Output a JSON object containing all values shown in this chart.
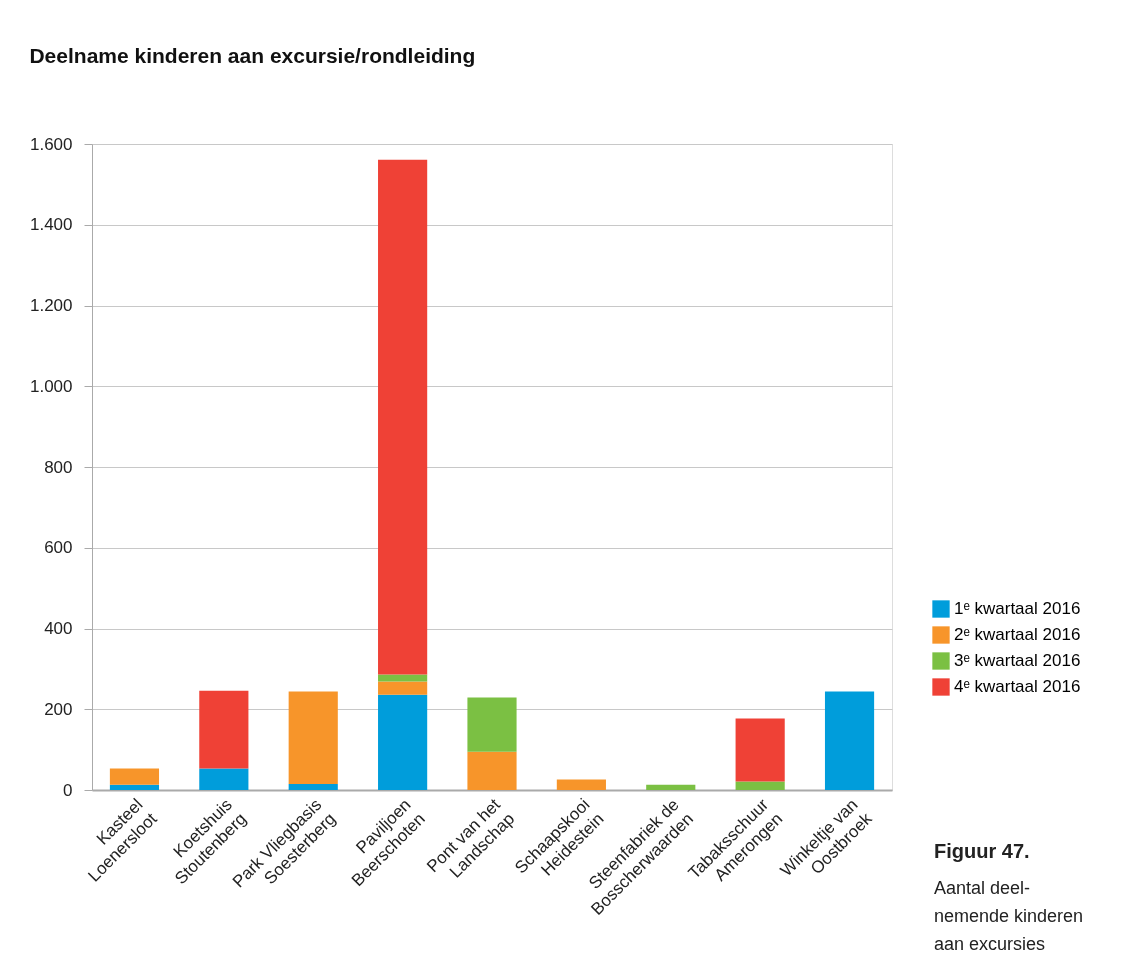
{
  "chart_data": {
    "type": "bar",
    "title": "Deelname kinderen aan excursie/rondleiding",
    "categories": [
      "Kasteel\nLoenersloot",
      "Koetshuis\nStoutenberg",
      "Park Vliegbasis\nSoesterberg",
      "Paviljoen\nBeerschoten",
      "Pont van het\nLandschap",
      "Schaapskooi\nHeidestein",
      "Steenfabriek de\nBosscherwaarden",
      "Tabaksschuur\nAmerongen",
      "Winkeltje van\nOostbroek"
    ],
    "stacked": true,
    "series": [
      {
        "name": "1ᵉ kwartaal 2016",
        "color": "#009ddb",
        "values": [
          13,
          53,
          15,
          236,
          0,
          0,
          0,
          0,
          244
        ]
      },
      {
        "name": "2ᵉ kwartaal 2016",
        "color": "#f7952a",
        "values": [
          40,
          0,
          229,
          33,
          95,
          26,
          0,
          0,
          0
        ]
      },
      {
        "name": "3ᵉ kwartaal 2016",
        "color": "#7bc043",
        "values": [
          0,
          0,
          0,
          17,
          134,
          0,
          13,
          21,
          0
        ]
      },
      {
        "name": "4ᵉ kwartaal 2016",
        "color": "#ef4136",
        "values": [
          0,
          193,
          0,
          1275,
          0,
          0,
          0,
          156,
          0
        ]
      }
    ],
    "ylim": [
      0,
      1600
    ],
    "yticks": [
      0,
      200,
      400,
      600,
      800,
      {
        "value": 1000,
        "label": "1.000"
      },
      {
        "value": 1200,
        "label": "1.200"
      },
      {
        "value": 1400,
        "label": "1.400"
      },
      {
        "value": 1600,
        "label": "1.600"
      }
    ],
    "grid": "y",
    "legend": "right",
    "annotations": [
      "Figuur 47.",
      "Aantal deel-\nnemende kinderen\naan excursies"
    ]
  }
}
